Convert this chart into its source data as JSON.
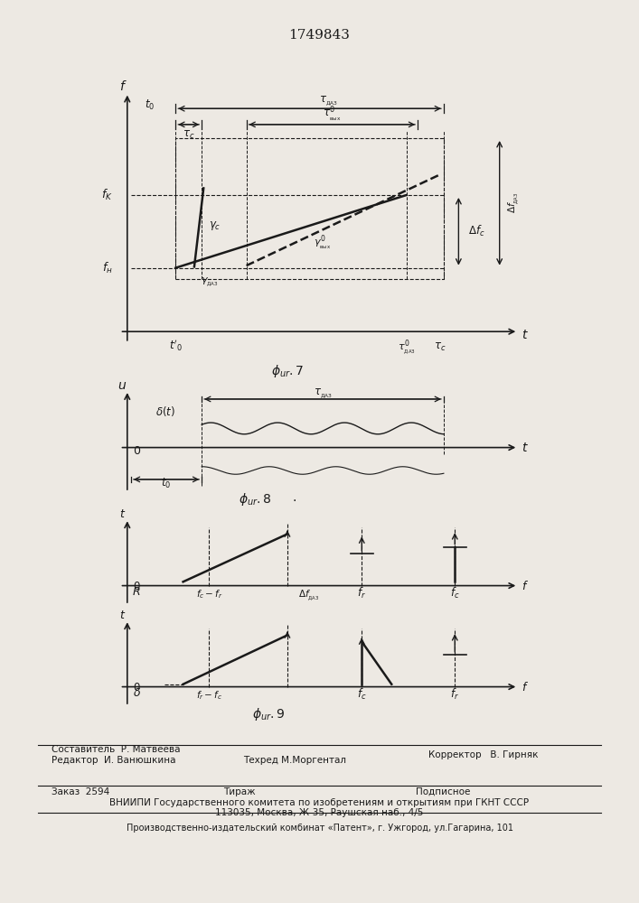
{
  "title": "1749843",
  "bg_color": "#ede9e3",
  "line_color": "#1a1a1a",
  "footer_editor": "Редактор  И. Ванюшкина",
  "footer_composer": "Составитель  Р. Матвеева",
  "footer_corrector": "Корректор   В. Гирняк",
  "footer_techred": "Техред М.Моргентал",
  "footer_order": "Заказ  2594",
  "footer_tirazh": "Тираж",
  "footer_podp": "Подписное",
  "footer_vniip": "ВНИИПИ Государственного комитета по изобретениям и открытиям при ГКНТ СССР",
  "footer_addr": "113035, Москва, Ж-35, Раушская наб., 4/5",
  "footer_patent": "Производственно-издательский комбинат «Патент», г. Ужгород, ул.Гагарина, 101"
}
